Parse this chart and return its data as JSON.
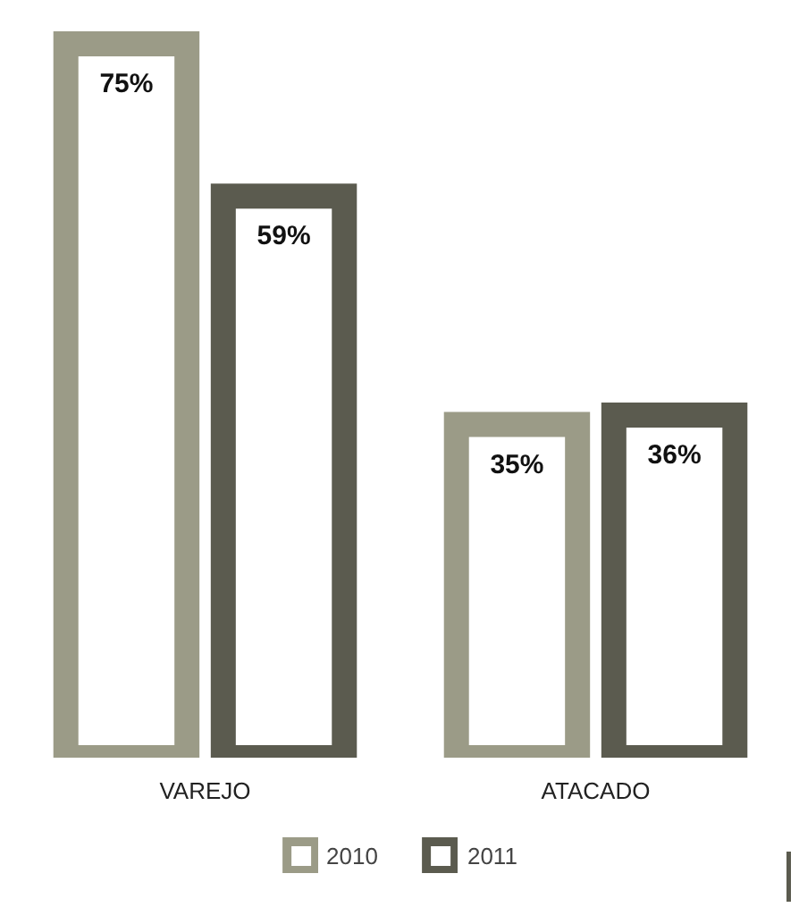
{
  "chart_data": {
    "type": "bar",
    "categories": [
      "VAREJO",
      "ATACADO"
    ],
    "series": [
      {
        "name": "2010",
        "color": "#9b9b87",
        "values": [
          75,
          35
        ],
        "value_labels": [
          "75%",
          "35%"
        ]
      },
      {
        "name": "2011",
        "color": "#5b5b4f",
        "values": [
          59,
          36
        ],
        "value_labels": [
          "59%",
          "36%"
        ]
      }
    ],
    "legend": "bottom"
  }
}
